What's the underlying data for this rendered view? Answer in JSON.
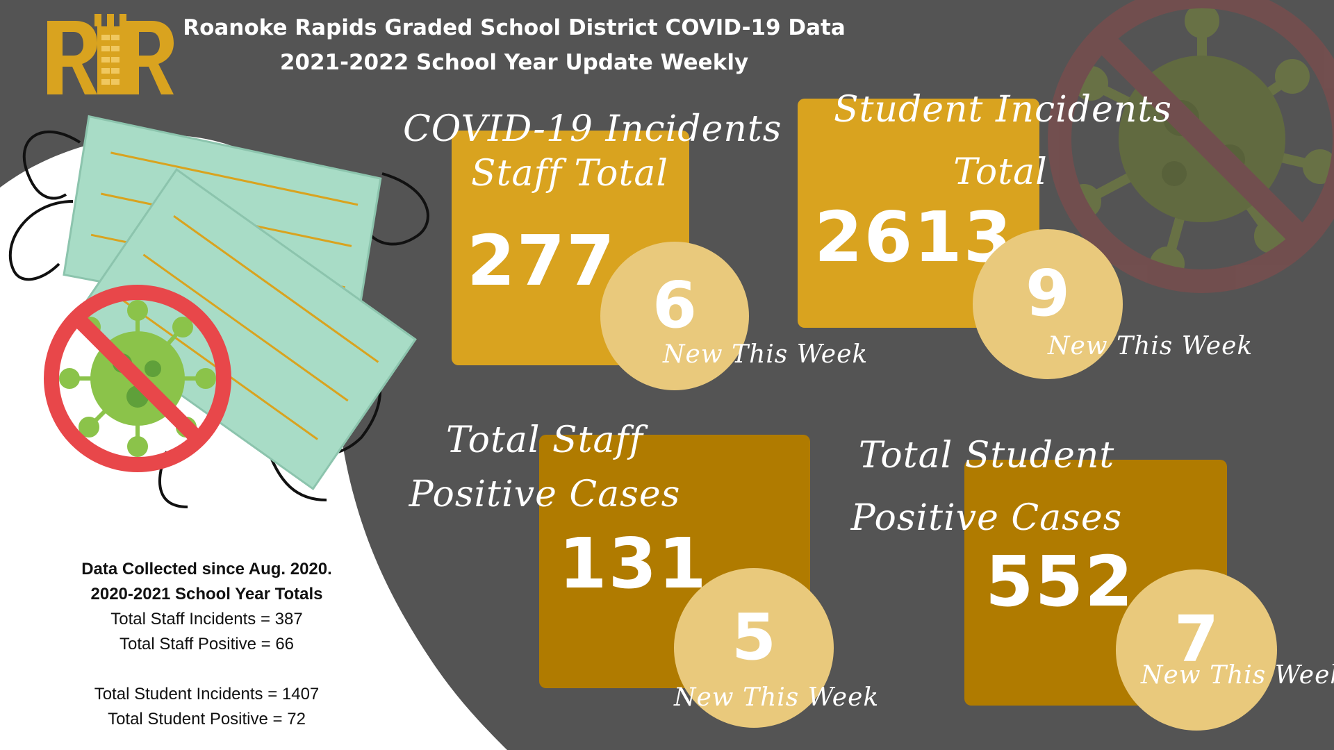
{
  "header": {
    "line1": "Roanoke Rapids Graded School District COVID-19 Data",
    "line2": "2021-2022 School Year Update Weekly"
  },
  "logo": {
    "letters": "RR"
  },
  "cards": [
    {
      "title_line1": "COVID-19 Incidents",
      "title_line2": "Staff Total",
      "total": "277",
      "new_count": "6",
      "new_label": "New This Week"
    },
    {
      "title_line1": "Student Incidents",
      "title_line2": "Total",
      "total": "2613",
      "new_count": "9",
      "new_label": "New This Week"
    },
    {
      "title_line1": "Total Staff",
      "title_line2": "Positive Cases",
      "total": "131",
      "new_count": "5",
      "new_label": "New This Week"
    },
    {
      "title_line1": "Total Student",
      "title_line2": "Positive Cases",
      "total": "552",
      "new_count": "7",
      "new_label": "New This Week"
    }
  ],
  "prior_year": {
    "heading1": "Data Collected since Aug. 2020.",
    "heading2": "2020-2021 School Year Totals",
    "staff_incidents": "Total Staff Incidents = 387",
    "staff_positive": "Total Staff Positive = 66",
    "student_incidents": "Total Student Incidents = 1407",
    "student_positive": "Total Student Positive = 72"
  },
  "colors": {
    "background": "#545454",
    "gold_light": "#d9a31f",
    "gold_dark": "#b07b00",
    "circle": "#e9c97c",
    "mask": "#a8dcc6",
    "no_symbol_red": "#e8474a",
    "virus_green": "#8bc34a"
  },
  "icons": [
    "district-logo",
    "face-mask-icon",
    "no-virus-icon",
    "no-virus-watermark-icon"
  ]
}
